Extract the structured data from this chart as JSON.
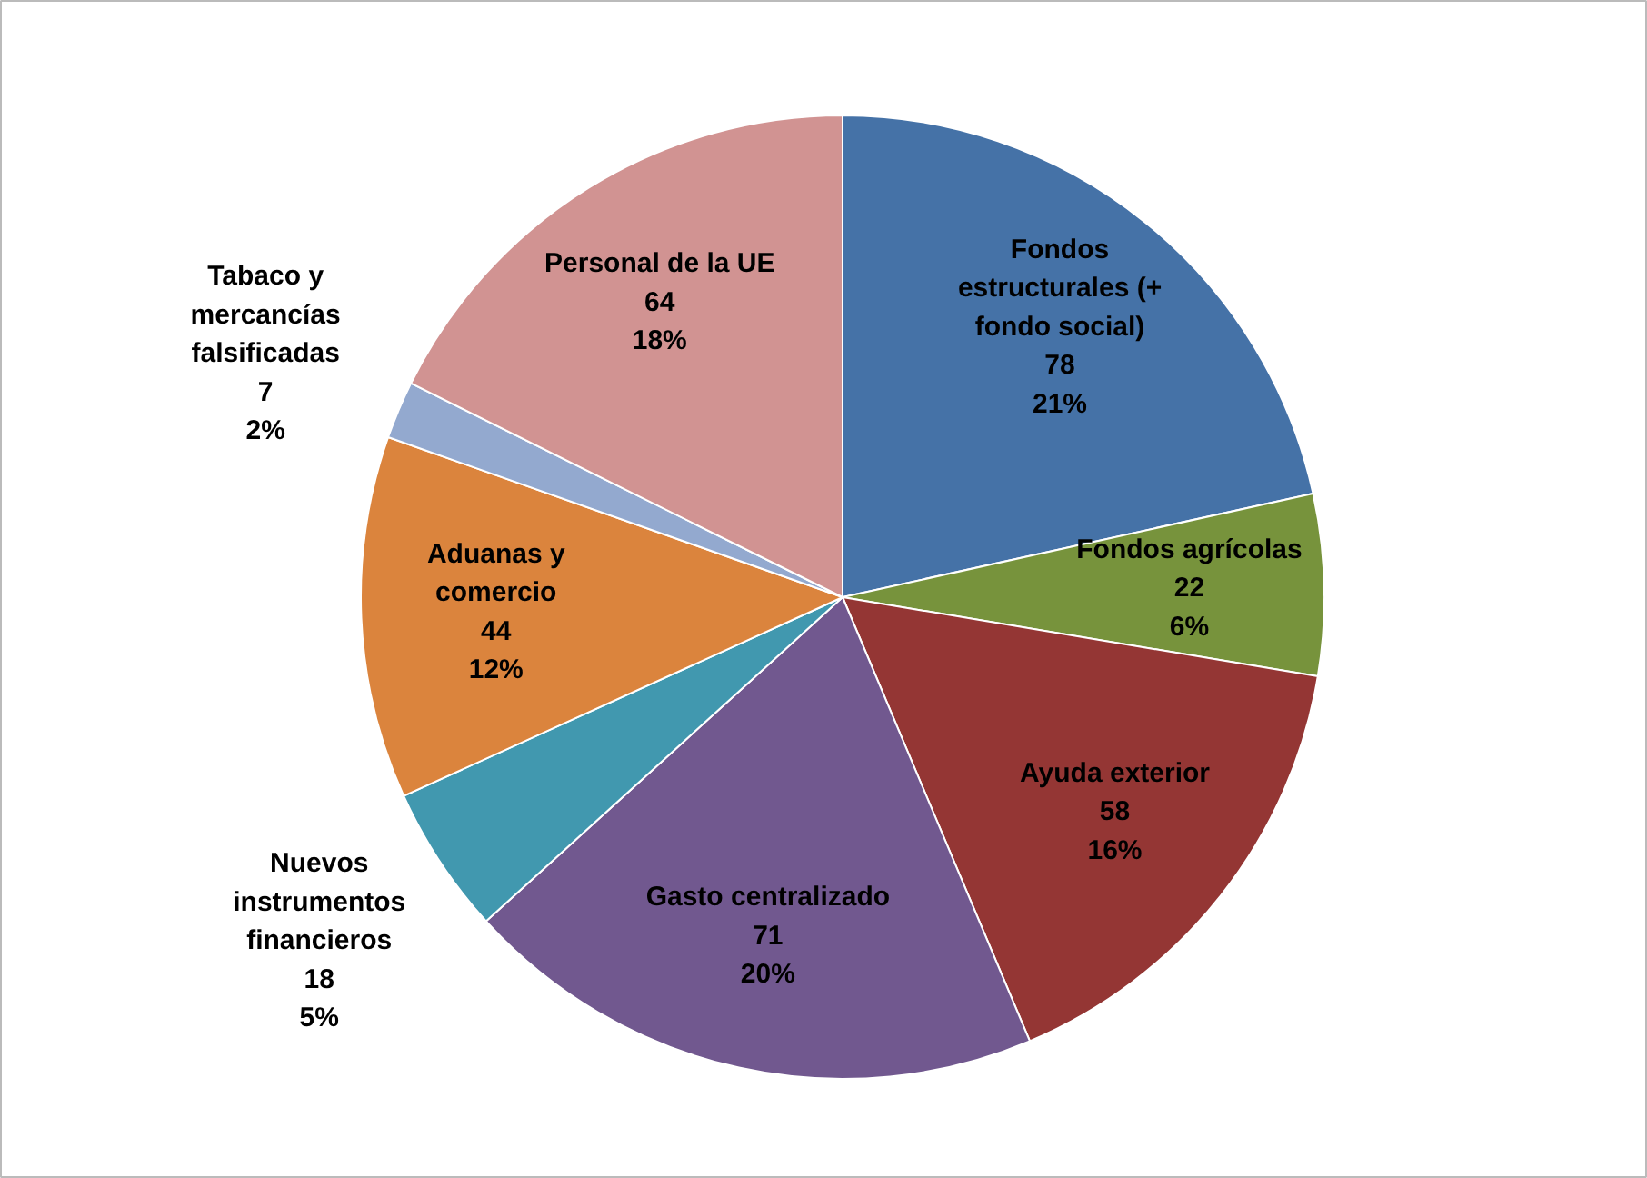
{
  "chart_data": {
    "type": "pie",
    "categories": [
      "Fondos\nestructurales (+\nfondo social)",
      "Fondos agrícolas",
      "Ayuda exterior",
      "Gasto centralizado",
      "Nuevos\ninstrumentos\nfinancieros",
      "Aduanas y\ncomercio",
      "Tabaco y\nmercancías\nfalsificadas",
      "Personal de la UE"
    ],
    "values": [
      78,
      22,
      58,
      71,
      18,
      44,
      7,
      64
    ],
    "value_labels": [
      "78\n21%",
      "22\n6%",
      "58\n16%",
      "71\n20%",
      "18\n5%",
      "44\n12%",
      "7\n2%",
      "64\n18%"
    ],
    "colors": [
      "#4572a7",
      "#77933c",
      "#943634",
      "#71588f",
      "#4198af",
      "#db843d",
      "#93a9cf",
      "#d19392"
    ]
  }
}
